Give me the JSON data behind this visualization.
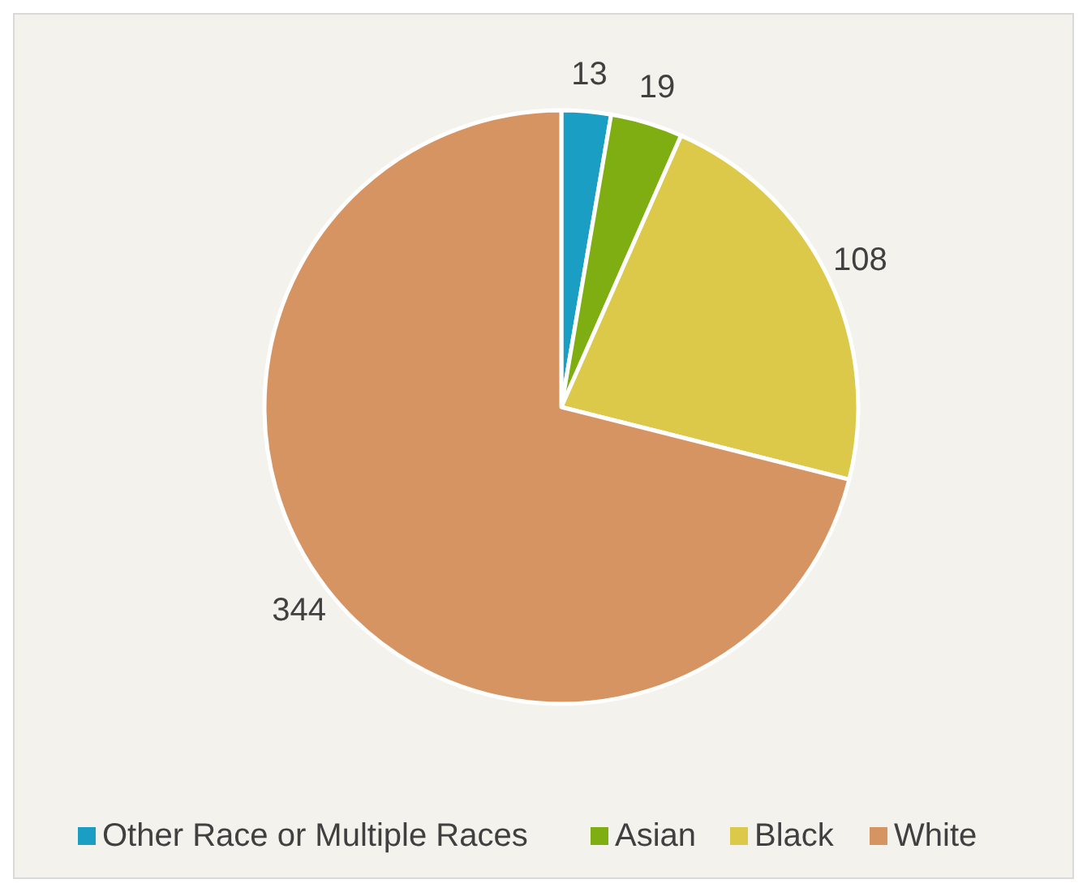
{
  "chart_data": {
    "type": "pie",
    "categories": [
      "Other Race or Multiple Races",
      "Asian",
      "Black",
      "White"
    ],
    "values": [
      13,
      19,
      108,
      344
    ],
    "colors": [
      "#1b9ec4",
      "#7fae12",
      "#dcc94a",
      "#d69463"
    ],
    "data_labels": true,
    "legend": "bottom"
  }
}
